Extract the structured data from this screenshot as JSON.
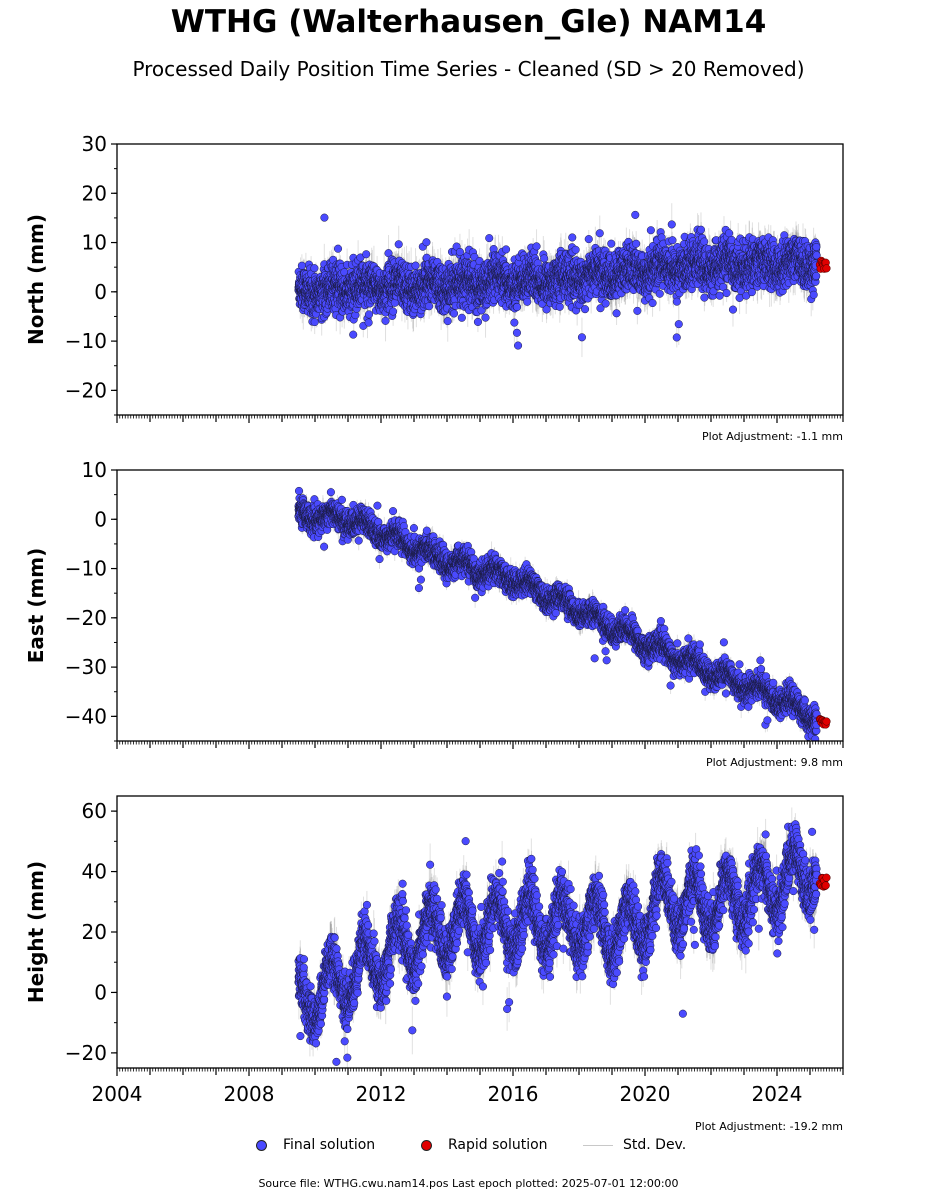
{
  "title": "WTHG (Walterhausen_Gle) NAM14",
  "subtitle": "Processed Daily Position Time Series - Cleaned (SD > 20 Removed)",
  "legend": {
    "final": "Final solution",
    "rapid": "Rapid solution",
    "sd": "Std. Dev."
  },
  "source": "Source file: WTHG.cwu.nam14.pos  Last epoch plotted: 2025-07-01 12:00:00",
  "colors": {
    "final": "#4a4aff",
    "rapid": "#e00000",
    "sd": "#c8c8c8"
  },
  "chart_data": [
    {
      "type": "scatter",
      "ylabel": "North (mm)",
      "adjustment": "Plot Adjustment: -1.1 mm",
      "xlim": [
        2004,
        2026
      ],
      "ylim": [
        -25,
        30
      ],
      "yticks": [
        -20,
        -10,
        0,
        10,
        20,
        30
      ],
      "xticks": [
        2004,
        2008,
        2012,
        2016,
        2020,
        2024
      ],
      "show_x_tick_labels": false,
      "final_series_trend": [
        {
          "x": 2009.5,
          "y": 0.0
        },
        {
          "x": 2012.0,
          "y": 1.0
        },
        {
          "x": 2016.0,
          "y": 2.0
        },
        {
          "x": 2019.0,
          "y": 3.5
        },
        {
          "x": 2020.5,
          "y": 5.0
        },
        {
          "x": 2025.2,
          "y": 6.0
        }
      ],
      "rapid_series": {
        "x": [
          2025.3,
          2025.5
        ],
        "y": [
          5.5,
          5.5
        ]
      },
      "scatter_sd": 2.2,
      "seasonal_amp": 1.0
    },
    {
      "type": "scatter",
      "ylabel": "East (mm)",
      "adjustment": "Plot Adjustment: 9.8 mm",
      "xlim": [
        2004,
        2026
      ],
      "ylim": [
        -45,
        10
      ],
      "yticks": [
        -40,
        -30,
        -20,
        -10,
        0,
        10
      ],
      "xticks": [
        2004,
        2008,
        2012,
        2016,
        2020,
        2024
      ],
      "show_x_tick_labels": false,
      "final_series_trend": [
        {
          "x": 2009.5,
          "y": 1.0
        },
        {
          "x": 2011.0,
          "y": 0.0
        },
        {
          "x": 2012.5,
          "y": -4.0
        },
        {
          "x": 2014.0,
          "y": -8.5
        },
        {
          "x": 2016.0,
          "y": -12.0
        },
        {
          "x": 2018.0,
          "y": -18.5
        },
        {
          "x": 2020.0,
          "y": -25.0
        },
        {
          "x": 2022.0,
          "y": -31.0
        },
        {
          "x": 2024.0,
          "y": -36.0
        },
        {
          "x": 2025.2,
          "y": -40.5
        }
      ],
      "rapid_series": {
        "x": [
          2025.3,
          2025.5
        ],
        "y": [
          -41.0,
          -41.5
        ]
      },
      "scatter_sd": 1.2,
      "seasonal_amp": 1.2
    },
    {
      "type": "scatter",
      "ylabel": "Height (mm)",
      "adjustment": "Plot Adjustment: -19.2 mm",
      "xlim": [
        2004,
        2026
      ],
      "ylim": [
        -25,
        65
      ],
      "yticks": [
        -20,
        0,
        20,
        40,
        60
      ],
      "xticks": [
        2004,
        2008,
        2012,
        2016,
        2020,
        2024
      ],
      "show_x_tick_labels": true,
      "final_series_trend": [
        {
          "x": 2009.5,
          "y": -4.0
        },
        {
          "x": 2011.0,
          "y": 5.0
        },
        {
          "x": 2012.5,
          "y": 15.0
        },
        {
          "x": 2014.0,
          "y": 21.0
        },
        {
          "x": 2016.0,
          "y": 23.0
        },
        {
          "x": 2018.0,
          "y": 23.0
        },
        {
          "x": 2019.5,
          "y": 20.0
        },
        {
          "x": 2020.5,
          "y": 30.0
        },
        {
          "x": 2022.0,
          "y": 29.0
        },
        {
          "x": 2024.0,
          "y": 35.0
        },
        {
          "x": 2025.2,
          "y": 42.0
        }
      ],
      "rapid_series": {
        "x": [
          2025.3,
          2025.5
        ],
        "y": [
          36.0,
          37.0
        ]
      },
      "scatter_sd": 4.0,
      "seasonal_amp": 9.0
    }
  ]
}
